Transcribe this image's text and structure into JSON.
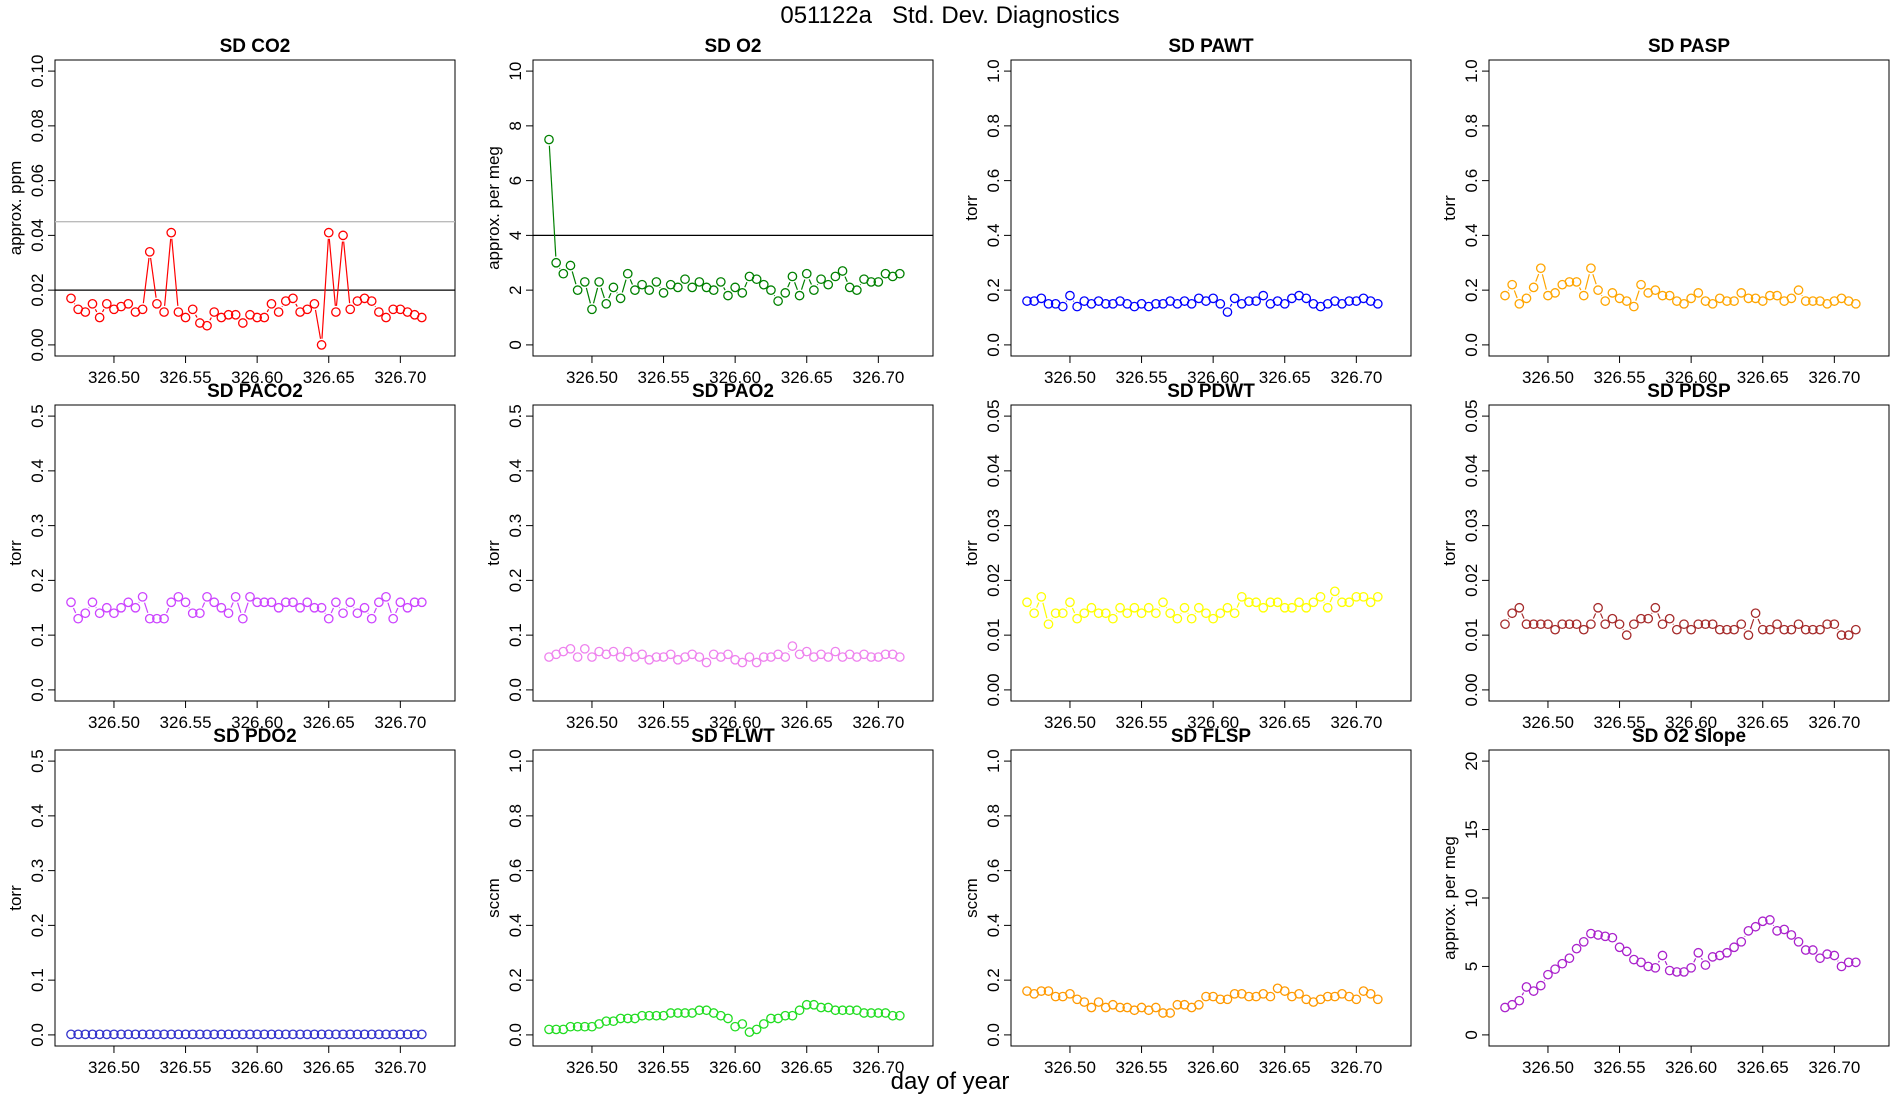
{
  "figure": {
    "title": "051122a   Std. Dev. Diagnostics",
    "xlabel": "day of year"
  },
  "chart_data": [
    {
      "type": "line",
      "title": "SD CO2",
      "xlabel": "",
      "ylabel": "approx. ppm",
      "color": "#ff0000",
      "xlim": [
        326.47,
        326.727
      ],
      "xticks": [
        "326.50",
        "326.55",
        "326.60",
        "326.65",
        "326.70"
      ],
      "ylim": [
        0,
        0.1
      ],
      "yticks": [
        "0.00",
        "0.02",
        "0.04",
        "0.06",
        "0.08",
        "0.10"
      ],
      "hlines": [
        {
          "y": 0.02,
          "color": "#000000"
        },
        {
          "y": 0.045,
          "color": "#bbbbbb"
        }
      ],
      "x_start": 326.47,
      "x_step": 0.005,
      "values": [
        0.017,
        0.013,
        0.012,
        0.015,
        0.01,
        0.015,
        0.013,
        0.014,
        0.015,
        0.012,
        0.013,
        0.034,
        0.015,
        0.012,
        0.041,
        0.012,
        0.01,
        0.013,
        0.008,
        0.007,
        0.012,
        0.01,
        0.011,
        0.011,
        0.008,
        0.011,
        0.01,
        0.01,
        0.015,
        0.012,
        0.016,
        0.017,
        0.012,
        0.013,
        0.015,
        0.0,
        0.041,
        0.012,
        0.04,
        0.013,
        0.016,
        0.017,
        0.016,
        0.012,
        0.01,
        0.013,
        0.013,
        0.012,
        0.011,
        0.01
      ]
    },
    {
      "type": "line",
      "title": "SD O2",
      "xlabel": "",
      "ylabel": "approx. per meg",
      "color": "#008000",
      "xlim": [
        326.47,
        326.727
      ],
      "xticks": [
        "326.50",
        "326.55",
        "326.60",
        "326.65",
        "326.70"
      ],
      "ylim": [
        0,
        10
      ],
      "yticks": [
        "0",
        "2",
        "4",
        "6",
        "8",
        "10"
      ],
      "hlines": [
        {
          "y": 4,
          "color": "#000000"
        }
      ],
      "x_start": 326.47,
      "x_step": 0.005,
      "values": [
        7.5,
        3.0,
        2.6,
        2.9,
        2.0,
        2.3,
        1.3,
        2.3,
        1.5,
        2.1,
        1.7,
        2.6,
        2.0,
        2.2,
        2.0,
        2.3,
        1.9,
        2.2,
        2.1,
        2.4,
        2.1,
        2.3,
        2.1,
        2.0,
        2.3,
        1.8,
        2.1,
        1.9,
        2.5,
        2.4,
        2.2,
        2.0,
        1.6,
        1.9,
        2.5,
        1.8,
        2.6,
        2.0,
        2.4,
        2.2,
        2.5,
        2.7,
        2.1,
        2.0,
        2.4,
        2.3,
        2.3,
        2.6,
        2.5,
        2.6
      ]
    },
    {
      "type": "line",
      "title": "SD PAWT",
      "xlabel": "",
      "ylabel": "torr",
      "color": "#0000ff",
      "xlim": [
        326.47,
        326.727
      ],
      "xticks": [
        "326.50",
        "326.55",
        "326.60",
        "326.65",
        "326.70"
      ],
      "ylim": [
        0,
        1.0
      ],
      "yticks": [
        "0.0",
        "0.2",
        "0.4",
        "0.6",
        "0.8",
        "1.0"
      ],
      "hlines": [],
      "x_start": 326.47,
      "x_step": 0.005,
      "values": [
        0.16,
        0.16,
        0.17,
        0.15,
        0.15,
        0.14,
        0.18,
        0.14,
        0.16,
        0.15,
        0.16,
        0.15,
        0.15,
        0.16,
        0.15,
        0.14,
        0.15,
        0.14,
        0.15,
        0.15,
        0.16,
        0.15,
        0.16,
        0.15,
        0.17,
        0.16,
        0.17,
        0.15,
        0.12,
        0.17,
        0.15,
        0.16,
        0.16,
        0.18,
        0.15,
        0.16,
        0.15,
        0.17,
        0.18,
        0.17,
        0.15,
        0.14,
        0.15,
        0.16,
        0.15,
        0.16,
        0.16,
        0.17,
        0.16,
        0.15
      ]
    },
    {
      "type": "line",
      "title": "SD PASP",
      "xlabel": "",
      "ylabel": "torr",
      "color": "#ffa500",
      "xlim": [
        326.47,
        326.727
      ],
      "xticks": [
        "326.50",
        "326.55",
        "326.60",
        "326.65",
        "326.70"
      ],
      "ylim": [
        0,
        1.0
      ],
      "yticks": [
        "0.0",
        "0.2",
        "0.4",
        "0.6",
        "0.8",
        "1.0"
      ],
      "hlines": [],
      "x_start": 326.47,
      "x_step": 0.005,
      "values": [
        0.18,
        0.22,
        0.15,
        0.17,
        0.21,
        0.28,
        0.18,
        0.19,
        0.22,
        0.23,
        0.23,
        0.18,
        0.28,
        0.2,
        0.16,
        0.19,
        0.17,
        0.16,
        0.14,
        0.22,
        0.19,
        0.2,
        0.18,
        0.18,
        0.16,
        0.15,
        0.17,
        0.19,
        0.16,
        0.15,
        0.17,
        0.16,
        0.16,
        0.19,
        0.17,
        0.17,
        0.16,
        0.18,
        0.18,
        0.16,
        0.17,
        0.2,
        0.16,
        0.16,
        0.16,
        0.15,
        0.16,
        0.17,
        0.16,
        0.15
      ]
    },
    {
      "type": "line",
      "title": "SD PACO2",
      "xlabel": "",
      "ylabel": "torr",
      "color": "#cc44ff",
      "xlim": [
        326.47,
        326.727
      ],
      "xticks": [
        "326.50",
        "326.55",
        "326.60",
        "326.65",
        "326.70"
      ],
      "ylim": [
        0,
        0.5
      ],
      "yticks": [
        "0.0",
        "0.1",
        "0.2",
        "0.3",
        "0.4",
        "0.5"
      ],
      "hlines": [],
      "x_start": 326.47,
      "x_step": 0.005,
      "values": [
        0.16,
        0.13,
        0.14,
        0.16,
        0.14,
        0.15,
        0.14,
        0.15,
        0.16,
        0.15,
        0.17,
        0.13,
        0.13,
        0.13,
        0.16,
        0.17,
        0.16,
        0.14,
        0.14,
        0.17,
        0.16,
        0.15,
        0.14,
        0.17,
        0.13,
        0.17,
        0.16,
        0.16,
        0.16,
        0.15,
        0.16,
        0.16,
        0.15,
        0.16,
        0.15,
        0.15,
        0.13,
        0.16,
        0.14,
        0.16,
        0.14,
        0.15,
        0.13,
        0.16,
        0.17,
        0.13,
        0.16,
        0.15,
        0.16,
        0.16
      ]
    },
    {
      "type": "line",
      "title": "SD PAO2",
      "xlabel": "",
      "ylabel": "torr",
      "color": "#ee82ee",
      "xlim": [
        326.47,
        326.727
      ],
      "xticks": [
        "326.50",
        "326.55",
        "326.60",
        "326.65",
        "326.70"
      ],
      "ylim": [
        0,
        0.5
      ],
      "yticks": [
        "0.0",
        "0.1",
        "0.2",
        "0.3",
        "0.4",
        "0.5"
      ],
      "hlines": [],
      "x_start": 326.47,
      "x_step": 0.005,
      "values": [
        0.06,
        0.065,
        0.07,
        0.075,
        0.06,
        0.075,
        0.06,
        0.07,
        0.065,
        0.07,
        0.06,
        0.07,
        0.06,
        0.065,
        0.055,
        0.06,
        0.06,
        0.065,
        0.055,
        0.06,
        0.065,
        0.06,
        0.05,
        0.065,
        0.06,
        0.065,
        0.055,
        0.05,
        0.06,
        0.05,
        0.06,
        0.06,
        0.065,
        0.06,
        0.08,
        0.065,
        0.07,
        0.06,
        0.065,
        0.06,
        0.07,
        0.06,
        0.065,
        0.06,
        0.065,
        0.06,
        0.06,
        0.065,
        0.065,
        0.06
      ]
    },
    {
      "type": "line",
      "title": "SD PDWT",
      "xlabel": "",
      "ylabel": "torr",
      "color": "#ffff00",
      "xlim": [
        326.47,
        326.727
      ],
      "xticks": [
        "326.50",
        "326.55",
        "326.60",
        "326.65",
        "326.70"
      ],
      "ylim": [
        0,
        0.05
      ],
      "yticks": [
        "0.00",
        "0.01",
        "0.02",
        "0.03",
        "0.04",
        "0.05"
      ],
      "hlines": [],
      "x_start": 326.47,
      "x_step": 0.005,
      "values": [
        0.016,
        0.014,
        0.017,
        0.012,
        0.014,
        0.014,
        0.016,
        0.013,
        0.014,
        0.015,
        0.014,
        0.014,
        0.013,
        0.015,
        0.014,
        0.015,
        0.014,
        0.015,
        0.014,
        0.016,
        0.014,
        0.013,
        0.015,
        0.013,
        0.015,
        0.014,
        0.013,
        0.014,
        0.015,
        0.014,
        0.017,
        0.016,
        0.016,
        0.015,
        0.016,
        0.016,
        0.015,
        0.015,
        0.016,
        0.015,
        0.016,
        0.017,
        0.015,
        0.018,
        0.016,
        0.016,
        0.017,
        0.017,
        0.016,
        0.017
      ]
    },
    {
      "type": "line",
      "title": "SD PDSP",
      "xlabel": "",
      "ylabel": "torr",
      "color": "#a52a2a",
      "xlim": [
        326.47,
        326.727
      ],
      "xticks": [
        "326.50",
        "326.55",
        "326.60",
        "326.65",
        "326.70"
      ],
      "ylim": [
        0,
        0.05
      ],
      "yticks": [
        "0.00",
        "0.01",
        "0.02",
        "0.03",
        "0.04",
        "0.05"
      ],
      "hlines": [],
      "x_start": 326.47,
      "x_step": 0.005,
      "values": [
        0.012,
        0.014,
        0.015,
        0.012,
        0.012,
        0.012,
        0.012,
        0.011,
        0.012,
        0.012,
        0.012,
        0.011,
        0.012,
        0.015,
        0.012,
        0.013,
        0.012,
        0.01,
        0.012,
        0.013,
        0.013,
        0.015,
        0.012,
        0.013,
        0.011,
        0.012,
        0.011,
        0.012,
        0.012,
        0.012,
        0.011,
        0.011,
        0.011,
        0.012,
        0.01,
        0.014,
        0.011,
        0.011,
        0.012,
        0.011,
        0.011,
        0.012,
        0.011,
        0.011,
        0.011,
        0.012,
        0.012,
        0.01,
        0.01,
        0.011
      ]
    },
    {
      "type": "line",
      "title": "SD PDO2",
      "xlabel": "",
      "ylabel": "torr",
      "color": "#3333cc",
      "xlim": [
        326.47,
        326.727
      ],
      "xticks": [
        "326.50",
        "326.55",
        "326.60",
        "326.65",
        "326.70"
      ],
      "ylim": [
        0,
        0.5
      ],
      "yticks": [
        "0.0",
        "0.1",
        "0.2",
        "0.3",
        "0.4",
        "0.5"
      ],
      "hlines": [],
      "x_start": 326.47,
      "x_step": 0.005,
      "values": [
        0.001,
        0.001,
        0.001,
        0.001,
        0.001,
        0.001,
        0.001,
        0.001,
        0.001,
        0.001,
        0.001,
        0.001,
        0.001,
        0.001,
        0.001,
        0.001,
        0.001,
        0.001,
        0.001,
        0.001,
        0.001,
        0.001,
        0.001,
        0.001,
        0.001,
        0.001,
        0.001,
        0.001,
        0.001,
        0.001,
        0.001,
        0.001,
        0.001,
        0.001,
        0.001,
        0.001,
        0.001,
        0.001,
        0.001,
        0.001,
        0.001,
        0.001,
        0.001,
        0.001,
        0.001,
        0.001,
        0.001,
        0.001,
        0.001,
        0.001
      ]
    },
    {
      "type": "line",
      "title": "SD FLWT",
      "xlabel": "",
      "ylabel": "sccm",
      "color": "#22dd22",
      "xlim": [
        326.47,
        326.727
      ],
      "xticks": [
        "326.50",
        "326.55",
        "326.60",
        "326.65",
        "326.70"
      ],
      "ylim": [
        0,
        1.0
      ],
      "yticks": [
        "0.0",
        "0.2",
        "0.4",
        "0.6",
        "0.8",
        "1.0"
      ],
      "hlines": [],
      "x_start": 326.47,
      "x_step": 0.005,
      "values": [
        0.02,
        0.02,
        0.02,
        0.03,
        0.03,
        0.03,
        0.03,
        0.04,
        0.05,
        0.05,
        0.06,
        0.06,
        0.06,
        0.07,
        0.07,
        0.07,
        0.07,
        0.08,
        0.08,
        0.08,
        0.08,
        0.09,
        0.09,
        0.08,
        0.07,
        0.06,
        0.03,
        0.04,
        0.01,
        0.02,
        0.04,
        0.06,
        0.06,
        0.07,
        0.07,
        0.09,
        0.11,
        0.11,
        0.1,
        0.1,
        0.09,
        0.09,
        0.09,
        0.09,
        0.08,
        0.08,
        0.08,
        0.08,
        0.07,
        0.07
      ]
    },
    {
      "type": "line",
      "title": "SD FLSP",
      "xlabel": "",
      "ylabel": "sccm",
      "color": "#ff9900",
      "xlim": [
        326.47,
        326.727
      ],
      "xticks": [
        "326.50",
        "326.55",
        "326.60",
        "326.65",
        "326.70"
      ],
      "ylim": [
        0,
        1.0
      ],
      "yticks": [
        "0.0",
        "0.2",
        "0.4",
        "0.6",
        "0.8",
        "1.0"
      ],
      "hlines": [],
      "x_start": 326.47,
      "x_step": 0.005,
      "values": [
        0.16,
        0.15,
        0.16,
        0.16,
        0.14,
        0.14,
        0.15,
        0.13,
        0.12,
        0.1,
        0.12,
        0.1,
        0.11,
        0.1,
        0.1,
        0.09,
        0.1,
        0.09,
        0.1,
        0.08,
        0.08,
        0.11,
        0.11,
        0.1,
        0.11,
        0.14,
        0.14,
        0.13,
        0.13,
        0.15,
        0.15,
        0.14,
        0.14,
        0.15,
        0.14,
        0.17,
        0.16,
        0.14,
        0.15,
        0.13,
        0.12,
        0.13,
        0.14,
        0.14,
        0.15,
        0.14,
        0.13,
        0.16,
        0.15,
        0.13
      ]
    },
    {
      "type": "line",
      "title": "SD O2 Slope",
      "xlabel": "",
      "ylabel": "approx. per meg",
      "color": "#aa22cc",
      "xlim": [
        326.47,
        326.727
      ],
      "xticks": [
        "326.50",
        "326.55",
        "326.60",
        "326.65",
        "326.70"
      ],
      "ylim": [
        0,
        20
      ],
      "yticks": [
        "0",
        "5",
        "10",
        "15",
        "20"
      ],
      "hlines": [],
      "x_start": 326.47,
      "x_step": 0.005,
      "values": [
        2.0,
        2.2,
        2.5,
        3.5,
        3.2,
        3.6,
        4.4,
        4.8,
        5.2,
        5.6,
        6.3,
        6.8,
        7.4,
        7.3,
        7.2,
        7.1,
        6.4,
        6.1,
        5.5,
        5.3,
        5.0,
        4.9,
        5.8,
        4.7,
        4.6,
        4.6,
        4.9,
        6.0,
        5.1,
        5.7,
        5.8,
        6.0,
        6.4,
        6.8,
        7.6,
        7.9,
        8.3,
        8.4,
        7.6,
        7.7,
        7.3,
        6.8,
        6.2,
        6.2,
        5.6,
        5.9,
        5.8,
        5.0,
        5.3,
        5.3
      ]
    }
  ]
}
